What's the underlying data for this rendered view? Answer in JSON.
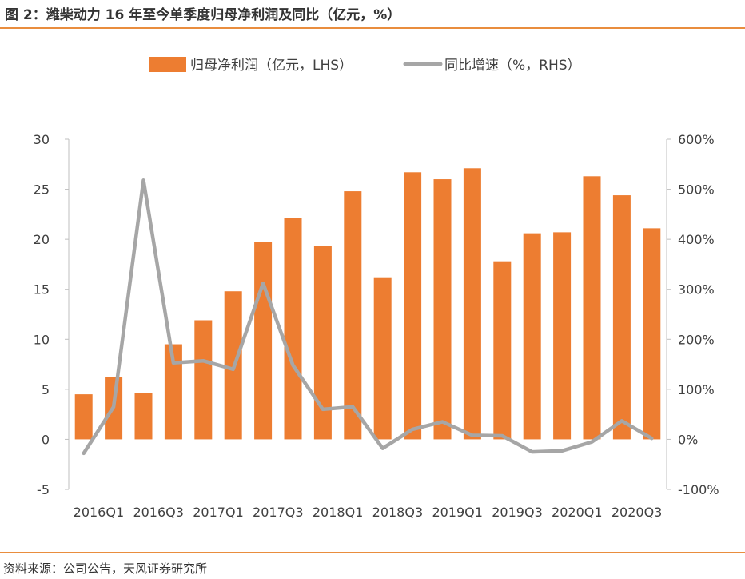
{
  "figure": {
    "title": "图 2：潍柴动力 16 年至今单季度归母净利润及同比（亿元，%）",
    "source": "资料来源：公司公告，天风证券研究所"
  },
  "chart_data": {
    "type": "bar",
    "title": "",
    "categories": [
      "2016Q1",
      "2016Q2",
      "2016Q3",
      "2016Q4",
      "2017Q1",
      "2017Q2",
      "2017Q3",
      "2017Q4",
      "2018Q1",
      "2018Q2",
      "2018Q3",
      "2018Q4",
      "2019Q1",
      "2019Q2",
      "2019Q3",
      "2019Q4",
      "2020Q1",
      "2020Q2",
      "2020Q3",
      "2020Q4"
    ],
    "x_tick_labels": [
      "2016Q1",
      "2016Q3",
      "2017Q1",
      "2017Q3",
      "2018Q1",
      "2018Q3",
      "2019Q1",
      "2019Q3",
      "2020Q1",
      "2020Q3"
    ],
    "series": [
      {
        "name": "归母净利润（亿元，LHS）",
        "type": "bar",
        "axis": "left",
        "color": "#ed7d31",
        "values": [
          4.5,
          6.2,
          4.6,
          9.5,
          11.9,
          14.8,
          19.7,
          22.1,
          19.3,
          24.8,
          16.2,
          26.7,
          26.0,
          27.1,
          17.8,
          20.6,
          20.7,
          26.3,
          24.4,
          21.1
        ]
      },
      {
        "name": "同比增速（%，RHS）",
        "type": "line",
        "axis": "right",
        "color": "#a6a6a6",
        "values": [
          -28,
          65,
          518,
          153,
          157,
          140,
          312,
          148,
          60,
          65,
          -18,
          20,
          35,
          8,
          7,
          -25,
          -23,
          -5,
          37,
          2
        ]
      }
    ],
    "y_left": {
      "min": -5,
      "max": 30,
      "step": 5,
      "ticks": [
        "-5",
        "0",
        "5",
        "10",
        "15",
        "20",
        "25",
        "30"
      ]
    },
    "y_right": {
      "min": -100,
      "max": 600,
      "step": 100,
      "ticks": [
        "-100%",
        "0%",
        "100%",
        "200%",
        "300%",
        "400%",
        "500%",
        "600%"
      ]
    },
    "legend_position": "top-center",
    "grid": false
  }
}
